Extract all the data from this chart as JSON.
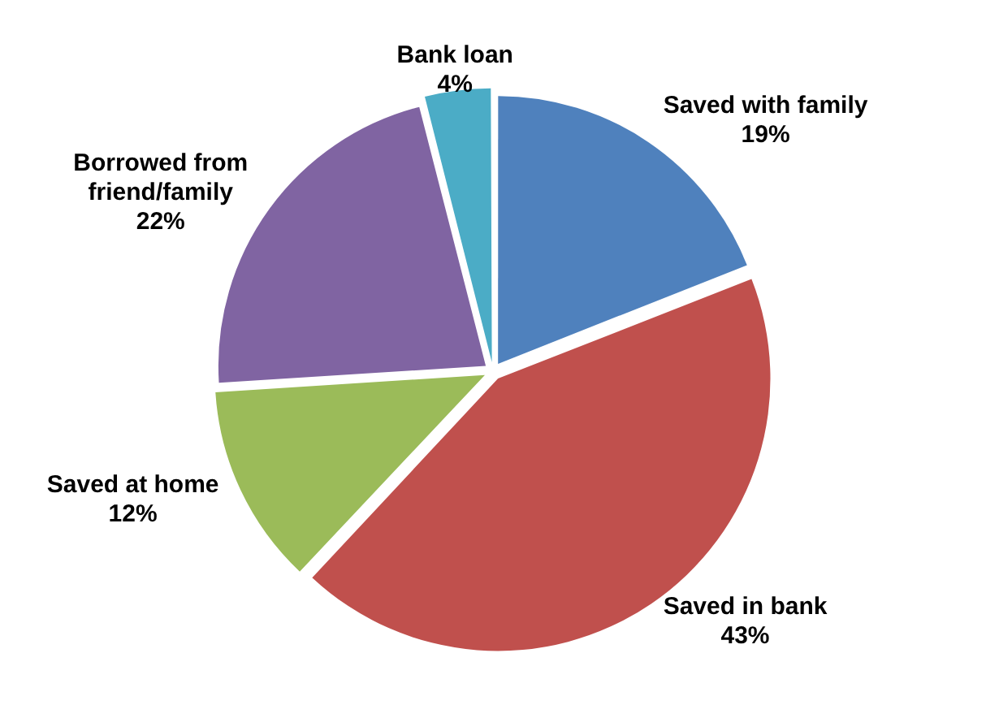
{
  "chart_data": {
    "type": "pie",
    "categories": [
      "Saved with family",
      "Saved in bank",
      "Saved at home",
      "Borrowed from friend/family",
      "Bank loan"
    ],
    "values": [
      19,
      43,
      12,
      22,
      4
    ],
    "colors": [
      "#4f81bd",
      "#c0504d",
      "#9bbb59",
      "#8064a2",
      "#4bacc6"
    ],
    "value_labels": [
      "19%",
      "43%",
      "12%",
      "22%",
      "4%"
    ],
    "legend": false
  }
}
